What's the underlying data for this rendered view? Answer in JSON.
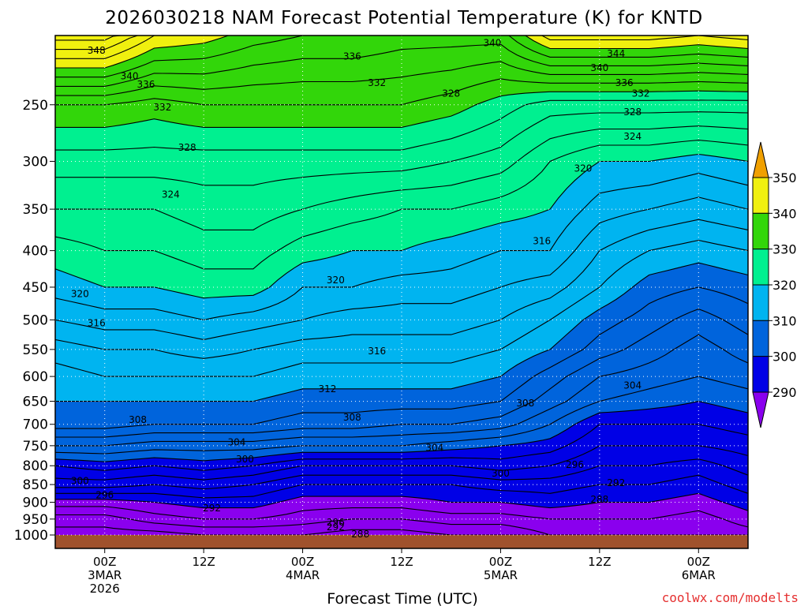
{
  "title": "2026030218 NAM Forecast Potential Temperature (K) for KNTD",
  "credit": "coolwx.com/modelts",
  "colors": {
    "ground": "#a0522d",
    "grid": "#ffffff",
    "bands": [
      {
        "lo": 280,
        "hi": 290,
        "color": "#8a00ee"
      },
      {
        "lo": 290,
        "hi": 300,
        "color": "#0000e6"
      },
      {
        "lo": 300,
        "hi": 310,
        "color": "#0064dc"
      },
      {
        "lo": 310,
        "hi": 320,
        "color": "#00b4f0"
      },
      {
        "lo": 320,
        "hi": 330,
        "color": "#00f090"
      },
      {
        "lo": 330,
        "hi": 340,
        "color": "#32d60a"
      },
      {
        "lo": 340,
        "hi": 350,
        "color": "#f0f00f"
      },
      {
        "lo": 350,
        "hi": 360,
        "color": "#f0a000"
      }
    ]
  },
  "chart_data": {
    "type": "heatmap",
    "title": "2026030218 NAM Forecast Potential Temperature (K) for KNTD",
    "xlabel": "Forecast Time (UTC)",
    "ylabel": "",
    "y_scale": "log-pressure",
    "y_ticks": [
      250,
      300,
      350,
      400,
      450,
      500,
      550,
      600,
      650,
      700,
      750,
      800,
      850,
      900,
      950,
      1000
    ],
    "y_tick_labels": [
      "250",
      "300",
      "350",
      "400",
      "450",
      "500",
      "550",
      "600",
      "650",
      "700",
      "750",
      "800",
      "850",
      "900",
      "950",
      "1000"
    ],
    "x_tick_labels": [
      [
        "00Z",
        "3MAR",
        "2026"
      ],
      [
        "12Z"
      ],
      [
        "00Z",
        "4MAR"
      ],
      [
        "12Z"
      ],
      [
        "00Z",
        "5MAR"
      ],
      [
        "12Z"
      ],
      [
        "00Z",
        "6MAR"
      ]
    ],
    "x_ticks_hours": [
      6,
      18,
      30,
      42,
      54,
      66,
      78
    ],
    "x_range_hours": [
      0,
      84
    ],
    "colorbar_ticks": [
      290,
      300,
      310,
      320,
      330,
      340,
      350
    ],
    "contour_interval": 2,
    "grid": true,
    "hours": [
      0,
      6,
      12,
      18,
      24,
      30,
      36,
      42,
      48,
      54,
      60,
      66,
      72,
      78,
      84
    ],
    "pressure_levels": [
      1000,
      950,
      900,
      850,
      800,
      750,
      700,
      650,
      600,
      550,
      500,
      450,
      400,
      350,
      300,
      250,
      200
    ],
    "theta_profiles": [
      [
        283,
        285,
        289,
        295,
        298,
        304,
        309,
        310,
        311,
        313,
        316,
        319,
        321,
        324,
        327,
        332,
        347
      ],
      [
        283,
        285,
        289,
        295,
        299,
        304,
        309,
        310,
        312,
        314,
        317,
        320,
        322,
        324,
        327,
        332,
        347
      ],
      [
        283,
        287,
        290,
        294,
        298,
        303,
        308,
        310,
        312,
        314,
        317,
        320,
        322,
        324,
        327,
        331,
        342
      ],
      [
        284,
        288,
        291,
        295,
        299,
        303,
        308,
        310,
        312,
        315,
        318,
        321,
        323,
        325,
        327,
        332,
        341
      ],
      [
        284,
        288,
        291,
        294,
        298,
        303,
        308,
        310,
        312,
        314,
        317,
        321,
        323,
        325,
        327,
        332,
        339
      ],
      [
        284,
        287,
        289,
        292,
        296,
        302,
        307,
        309,
        311,
        313,
        316,
        318,
        321,
        324,
        327,
        332,
        338
      ],
      [
        283,
        286,
        289,
        292,
        296,
        302,
        307,
        309,
        311,
        313,
        315,
        318,
        320,
        323,
        327,
        332,
        338
      ],
      [
        283,
        286,
        289,
        292,
        296,
        302,
        306,
        309,
        311,
        313,
        315,
        317,
        320,
        322,
        327,
        332,
        337
      ],
      [
        284,
        287,
        290,
        292,
        296,
        301,
        306,
        309,
        311,
        313,
        315,
        317,
        319,
        322,
        326,
        331,
        337
      ],
      [
        284,
        287,
        290,
        293,
        297,
        300,
        305,
        308,
        310,
        312,
        314,
        316,
        318,
        321,
        325,
        329,
        337
      ],
      [
        286,
        288,
        291,
        293,
        296,
        299,
        302,
        305,
        307,
        310,
        312,
        315,
        318,
        320,
        322,
        327,
        343
      ],
      [
        287,
        288,
        290,
        292,
        294,
        296,
        298,
        302,
        304,
        307,
        309,
        312,
        314,
        317,
        320,
        327,
        343
      ],
      [
        287,
        288,
        290,
        292,
        294,
        296,
        298,
        301,
        303,
        305,
        307,
        309,
        312,
        316,
        320,
        327,
        343
      ],
      [
        286,
        287,
        289,
        291,
        293,
        296,
        298,
        300,
        302,
        303,
        305,
        308,
        311,
        315,
        319,
        327,
        342
      ],
      [
        287,
        289,
        291,
        293,
        295,
        297,
        299,
        301,
        303,
        305,
        307,
        309,
        312,
        316,
        320,
        327,
        343
      ]
    ],
    "contour_labels": [
      {
        "value": "348",
        "hour": 5,
        "pressure": 210
      },
      {
        "value": "340",
        "hour": 53,
        "pressure": 205
      },
      {
        "value": "344",
        "hour": 68,
        "pressure": 212
      },
      {
        "value": "340",
        "hour": 9,
        "pressure": 228
      },
      {
        "value": "336",
        "hour": 11,
        "pressure": 234
      },
      {
        "value": "336",
        "hour": 36,
        "pressure": 214
      },
      {
        "value": "340",
        "hour": 66,
        "pressure": 222
      },
      {
        "value": "336",
        "hour": 69,
        "pressure": 233
      },
      {
        "value": "332",
        "hour": 13,
        "pressure": 252
      },
      {
        "value": "332",
        "hour": 39,
        "pressure": 233
      },
      {
        "value": "332",
        "hour": 71,
        "pressure": 241
      },
      {
        "value": "328",
        "hour": 48,
        "pressure": 241
      },
      {
        "value": "328",
        "hour": 70,
        "pressure": 256
      },
      {
        "value": "328",
        "hour": 16,
        "pressure": 287
      },
      {
        "value": "324",
        "hour": 70,
        "pressure": 277
      },
      {
        "value": "324",
        "hour": 14,
        "pressure": 334
      },
      {
        "value": "320",
        "hour": 64,
        "pressure": 307
      },
      {
        "value": "316",
        "hour": 59,
        "pressure": 388
      },
      {
        "value": "320",
        "hour": 34,
        "pressure": 440
      },
      {
        "value": "320",
        "hour": 3,
        "pressure": 460
      },
      {
        "value": "316",
        "hour": 5,
        "pressure": 505
      },
      {
        "value": "316",
        "hour": 39,
        "pressure": 553
      },
      {
        "value": "312",
        "hour": 33,
        "pressure": 625
      },
      {
        "value": "304",
        "hour": 70,
        "pressure": 618
      },
      {
        "value": "308",
        "hour": 57,
        "pressure": 654
      },
      {
        "value": "308",
        "hour": 36,
        "pressure": 685
      },
      {
        "value": "308",
        "hour": 10,
        "pressure": 690
      },
      {
        "value": "304",
        "hour": 22,
        "pressure": 742
      },
      {
        "value": "304",
        "hour": 46,
        "pressure": 755
      },
      {
        "value": "300",
        "hour": 23,
        "pressure": 783
      },
      {
        "value": "296",
        "hour": 63,
        "pressure": 797
      },
      {
        "value": "300",
        "hour": 54,
        "pressure": 820
      },
      {
        "value": "300",
        "hour": 3,
        "pressure": 840
      },
      {
        "value": "292",
        "hour": 68,
        "pressure": 846
      },
      {
        "value": "296",
        "hour": 6,
        "pressure": 880
      },
      {
        "value": "288",
        "hour": 66,
        "pressure": 892
      },
      {
        "value": "292",
        "hour": 19,
        "pressure": 917
      },
      {
        "value": "296",
        "hour": 34,
        "pressure": 960
      },
      {
        "value": "292",
        "hour": 34,
        "pressure": 975
      },
      {
        "value": "288",
        "hour": 37,
        "pressure": 997
      }
    ]
  }
}
